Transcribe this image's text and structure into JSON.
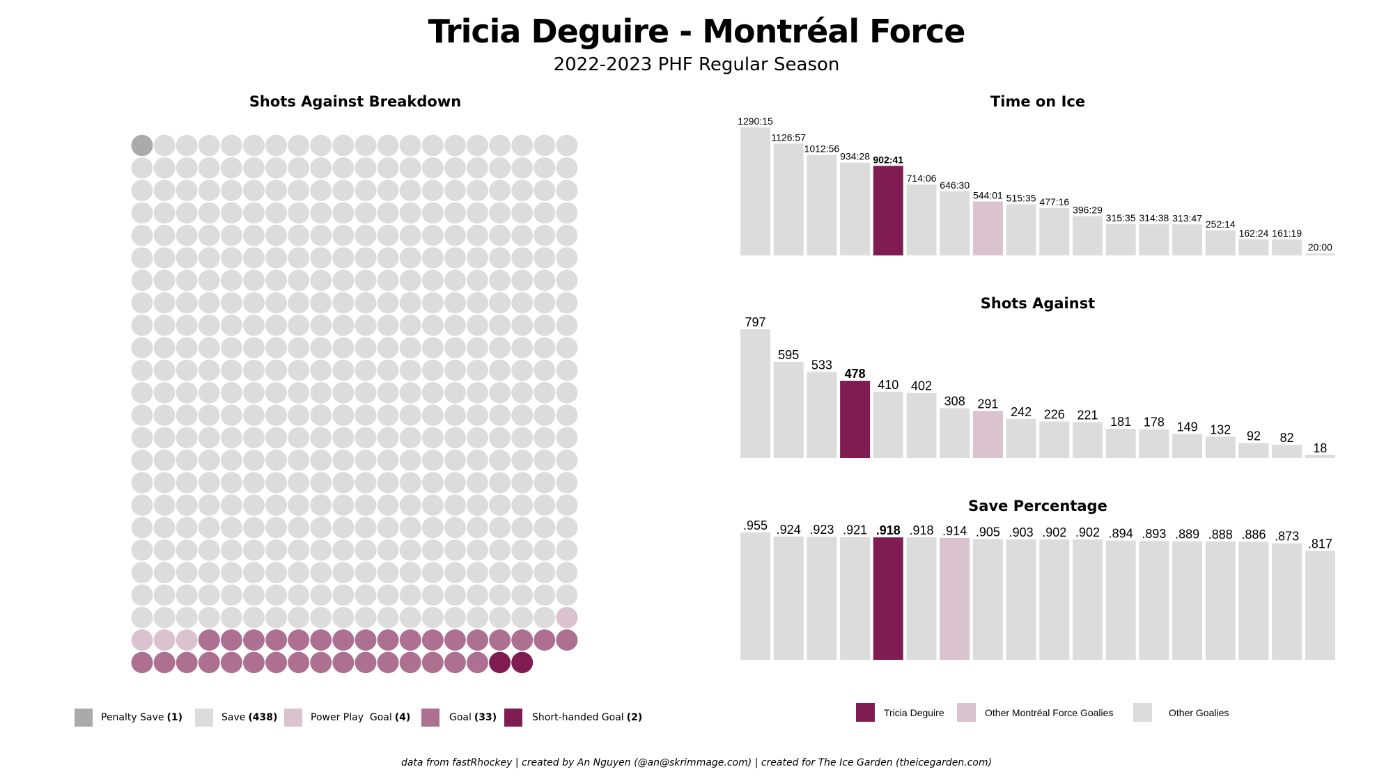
{
  "header": {
    "title": "Tricia Deguire - Montréal Force",
    "subtitle": "2022-2023 PHF Regular Season"
  },
  "colors": {
    "penalty_save": "#aaaaaa",
    "save": "#dcdcdc",
    "power_play_goal": "#dbc2cf",
    "goal": "#ad7090",
    "short_handed_goal": "#7f1d52",
    "tricia_deguire": "#7f1d52",
    "other_montreal_force_goalies": "#dbc2cf",
    "other_goalies": "#dcdcdc"
  },
  "chart_data": [
    {
      "type": "waffle",
      "title": "Shots Against Breakdown",
      "columns": 20,
      "categories": [
        {
          "key": "penalty_save",
          "label": "Penalty  Save",
          "count": 1,
          "count_label": "(1)"
        },
        {
          "key": "save",
          "label": "Save",
          "count": 438,
          "count_label": "(438)"
        },
        {
          "key": "power_play_goal",
          "label": "Power Play  Goal",
          "count": 4,
          "count_label": "(4)"
        },
        {
          "key": "goal",
          "label": "Goal",
          "count": 33,
          "count_label": "(33)"
        },
        {
          "key": "short_handed_goal",
          "label": "Short-handed Goal",
          "count": 2,
          "count_label": "(2)"
        }
      ],
      "legend_position": "bottom"
    },
    {
      "type": "bar",
      "title": "Time on Ice",
      "unit": "minutes",
      "labels": [
        "1290:15",
        "1126:57",
        "1012:56",
        "934:28",
        "902:41",
        "714:06",
        "646:30",
        "544:01",
        "515:35",
        "477:16",
        "396:29",
        "315:35",
        "314:38",
        "313:47",
        "252:14",
        "162:24",
        "161:19",
        "20:00"
      ],
      "values": [
        1290.25,
        1126.95,
        1012.93,
        934.47,
        902.68,
        714.1,
        646.5,
        544.02,
        515.58,
        477.27,
        396.48,
        315.58,
        314.63,
        313.78,
        252.23,
        162.4,
        161.32,
        20.0
      ],
      "groups": [
        "other",
        "other",
        "other",
        "other",
        "tricia",
        "other",
        "other",
        "montreal",
        "other",
        "other",
        "other",
        "other",
        "other",
        "other",
        "other",
        "other",
        "other",
        "other"
      ],
      "ylim": [
        0,
        1290.25
      ]
    },
    {
      "type": "bar",
      "title": "Shots Against",
      "labels": [
        "797",
        "595",
        "533",
        "478",
        "410",
        "402",
        "308",
        "291",
        "242",
        "226",
        "221",
        "181",
        "178",
        "149",
        "132",
        "92",
        "82",
        "18"
      ],
      "values": [
        797,
        595,
        533,
        478,
        410,
        402,
        308,
        291,
        242,
        226,
        221,
        181,
        178,
        149,
        132,
        92,
        82,
        18
      ],
      "groups": [
        "other",
        "other",
        "other",
        "tricia",
        "other",
        "other",
        "other",
        "montreal",
        "other",
        "other",
        "other",
        "other",
        "other",
        "other",
        "other",
        "other",
        "other",
        "other"
      ],
      "ylim": [
        0,
        797
      ]
    },
    {
      "type": "bar",
      "title": "Save Percentage",
      "labels": [
        ".955",
        ".924",
        ".923",
        ".921",
        ".918",
        ".918",
        ".914",
        ".905",
        ".903",
        ".902",
        ".902",
        ".894",
        ".893",
        ".889",
        ".888",
        ".886",
        ".873",
        ".817"
      ],
      "values": [
        0.955,
        0.924,
        0.923,
        0.921,
        0.918,
        0.918,
        0.914,
        0.905,
        0.903,
        0.902,
        0.902,
        0.894,
        0.893,
        0.889,
        0.888,
        0.886,
        0.873,
        0.817
      ],
      "groups": [
        "other",
        "other",
        "other",
        "other",
        "tricia",
        "other",
        "montreal",
        "other",
        "other",
        "other",
        "other",
        "other",
        "other",
        "other",
        "other",
        "other",
        "other",
        "other"
      ],
      "ylim": [
        0,
        0.955
      ]
    }
  ],
  "bar_legend": [
    {
      "key": "tricia_deguire",
      "label": "Tricia Deguire"
    },
    {
      "key": "other_montreal_force_goalies",
      "label": "Other Montréal Force Goalies"
    },
    {
      "key": "other_goalies",
      "label": "Other Goalies"
    }
  ],
  "footer": {
    "caption": "data from fastRhockey | created by An Nguyen (@an@skrimmage.com) | created for The Ice Garden (theicegarden.com)"
  }
}
